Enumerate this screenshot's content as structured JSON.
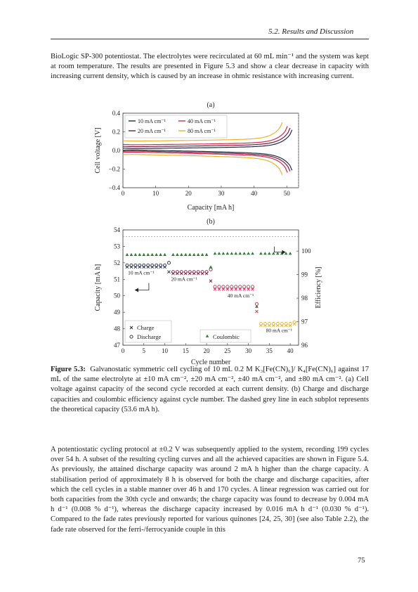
{
  "header": {
    "running_head": "5.2.  Results and Discussion"
  },
  "intro_paragraph": "BioLogic SP-300 potentiostat. The electrolytes were recirculated at 60 mL min⁻¹ and the system was kept at room temperature. The results are presented in Figure 5.3 and show a clear decrease in capacity with increasing current density, which is caused by an increase in ohmic resistance with increasing current.",
  "figure": {
    "caption_label": "Figure 5.3:",
    "caption_text": "Galvanostatic symmetric cell cycling of 10 mL 0.2 M K₃[Fe(CN)₆]/ K₄[Fe(CN)₆] against 17 mL of the same electrolyte at ±10 mA cm⁻², ±20 mA cm⁻², ±40 mA cm⁻², and ±80 mA cm⁻². (a) Cell voltage against capacity of the second cycle recorded at each current density. (b) Charge and discharge capacities and coulombic efficiency against cycle number. The dashed grey line in each subplot represents the theoretical capacity (53.6 mA h)."
  },
  "body_paragraph": "A potentiostatic cycling protocol at ±0.2 V was subsequently applied to the system, recording 199 cycles over 54 h. A subset of the resulting cycling curves and all the achieved capacities are shown in Figure 5.4. As previously, the attained discharge capacity was around 2 mA h higher than the charge capacity. A stabilisation period of approximately 8 h is observed for both the charge and discharge capacities, after which the cell cycles in a stable manner over 46 h and 170 cycles. A linear regression was carried out for both capacities from the 30th cycle and onwards; the charge capacity was found to decrease by 0.004 mA h d⁻¹ (0.008 % d⁻¹), whereas the discharge capacity increased by 0.016 mA h d⁻¹ (0.030 % d⁻¹). Compared to the fade rates previously reported for various quinones [24, 25, 30] (see also Table 2.2), the fade rate observed for the ferri-/ferrocyanide couple in this",
  "page_number": "75",
  "chart_data": [
    {
      "type": "line",
      "panel_label": "(a)",
      "xlabel": "Capacity [mA h]",
      "ylabel": "Cell voltage [V]",
      "xlim": [
        0,
        53.6
      ],
      "ylim": [
        -0.4,
        0.4
      ],
      "xticks": [
        0,
        10,
        20,
        30,
        40,
        50
      ],
      "yticks": [
        -0.4,
        -0.2,
        0.0,
        0.2,
        0.4
      ],
      "ytick_labels": [
        "−0.4",
        "−0.2",
        "0.0",
        "0.2",
        "0.4"
      ],
      "theoretical_capacity": 53.6,
      "series": [
        {
          "name": "10 mA cm⁻¹",
          "color": "#1f2a44",
          "end_capacity": 51.6,
          "v0": 0.02
        },
        {
          "name": "20 mA cm⁻¹",
          "color": "#7a1e3c",
          "end_capacity": 51.0,
          "v0": 0.04
        },
        {
          "name": "40 mA cm⁻¹",
          "color": "#d62a50",
          "end_capacity": 50.2,
          "v0": 0.06
        },
        {
          "name": "80 mA cm⁻¹",
          "color": "#f2b12a",
          "end_capacity": 48.6,
          "v0": 0.1
        }
      ]
    },
    {
      "type": "scatter",
      "panel_label": "(b)",
      "xlabel": "Cycle number",
      "ylabel": "Capacity [mA h]",
      "y2label": "Efficiency [%]",
      "xlim": [
        0,
        42
      ],
      "ylim": [
        47,
        54
      ],
      "y2lim": [
        96,
        100.9
      ],
      "xticks": [
        0,
        5,
        10,
        15,
        20,
        25,
        30,
        35,
        40
      ],
      "yticks": [
        47,
        48,
        49,
        50,
        51,
        52,
        53,
        54
      ],
      "y2ticks": [
        96,
        97,
        98,
        99,
        100
      ],
      "theoretical_capacity": 53.6,
      "legend": [
        "Charge",
        "Discharge",
        "Coulombic"
      ],
      "group_labels": [
        {
          "text": "10 mA cm⁻¹",
          "color": "#1f2a44",
          "x": 1.2,
          "y": 51.3
        },
        {
          "text": "20 mA cm⁻¹",
          "color": "#7a1e3c",
          "x": 11.5,
          "y": 50.9
        },
        {
          "text": "40 mA cm⁻¹",
          "color": "#d62a50",
          "x": 25.0,
          "y": 49.9
        },
        {
          "text": "80 mA cm⁻¹",
          "color": "#f2b12a",
          "x": 34.2,
          "y": 47.8
        }
      ],
      "groups": [
        {
          "cycles": [
            1,
            2,
            3,
            4,
            5,
            6,
            7,
            8,
            9,
            10
          ],
          "color": "#1f2a44",
          "charge": 51.75,
          "discharge": 51.85,
          "outlier_cycle": 11,
          "outlier": [
            51.45,
            52.0
          ],
          "efficiency": 99.85
        },
        {
          "cycles": [
            12,
            13,
            14,
            15,
            16,
            17,
            18,
            19,
            20
          ],
          "color": "#7a1e3c",
          "charge": 51.35,
          "discharge": 51.45,
          "outlier_cycle": 21,
          "outlier": [
            50.9,
            51.6
          ],
          "efficiency": 99.85
        },
        {
          "cycles": [
            22,
            23,
            24,
            25,
            26,
            27,
            28,
            29,
            30,
            31
          ],
          "color": "#d62a50",
          "charge": 50.4,
          "discharge": 50.55,
          "outlier_cycle": 32,
          "outlier": [
            49.05,
            49.5
          ],
          "efficiency": 99.9
        },
        {
          "cycles": [
            33,
            34,
            35,
            36,
            37,
            38,
            39,
            40
          ],
          "color": "#f2b12a",
          "charge": 48.2,
          "discharge": 48.3,
          "outlier_cycle": 41,
          "outlier": [
            48.3,
            48.4
          ],
          "efficiency": 99.9
        }
      ],
      "efficiency_color": "#2e7d32"
    }
  ]
}
